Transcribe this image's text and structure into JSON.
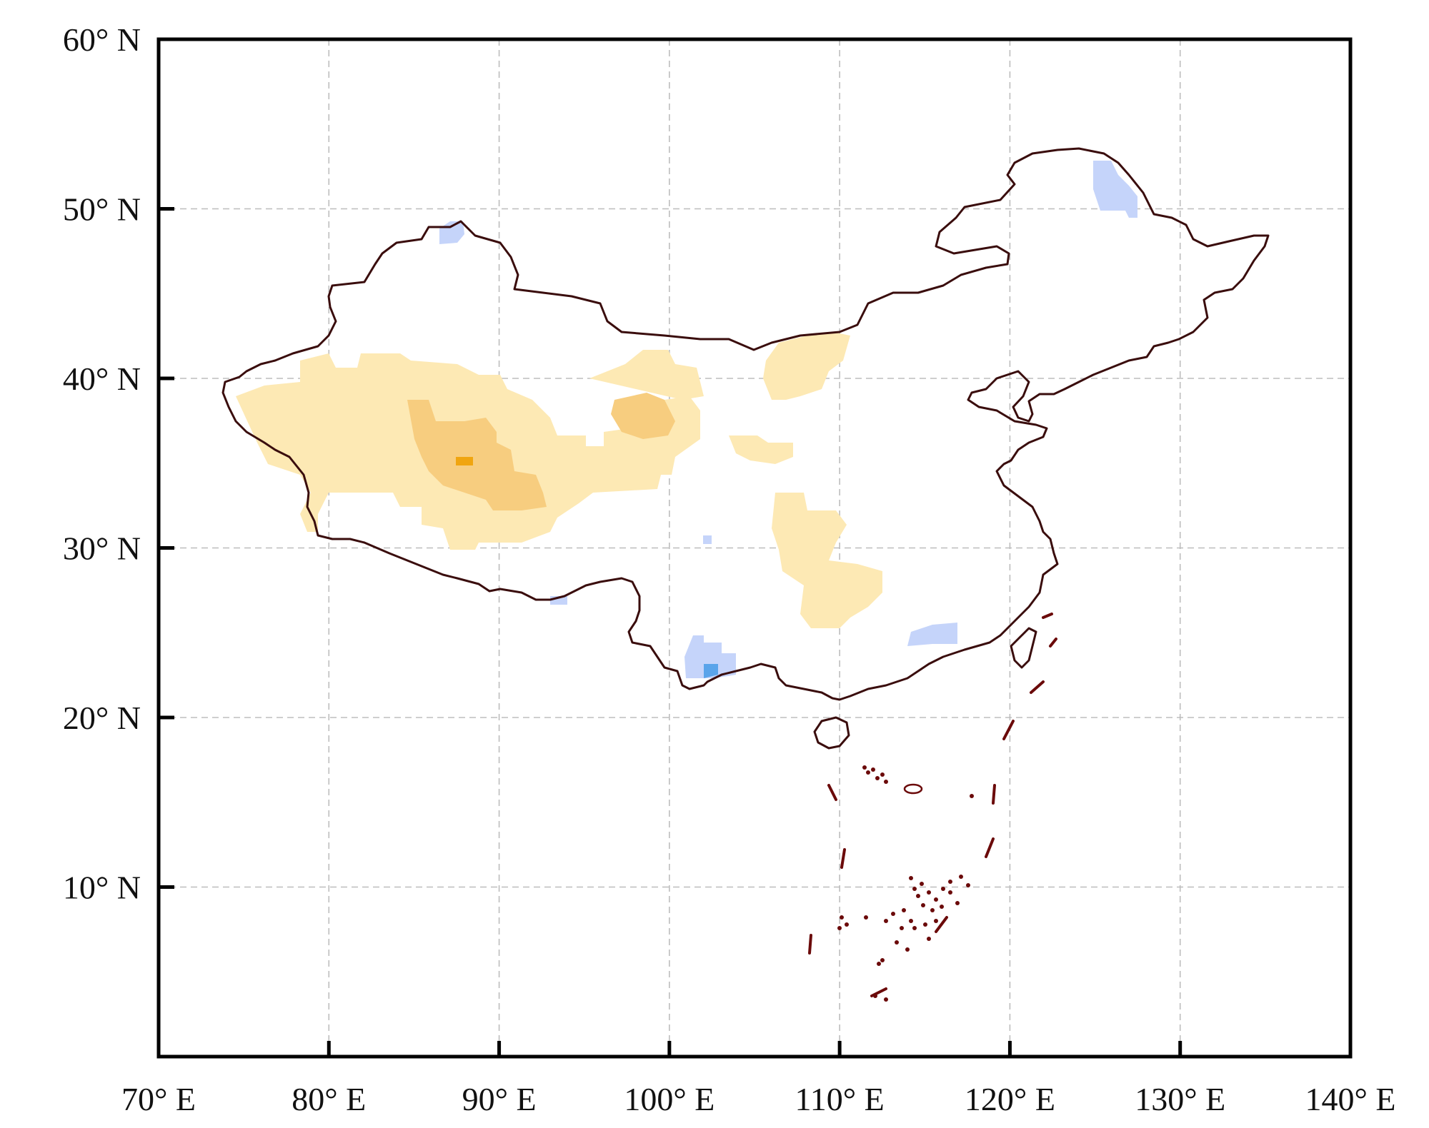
{
  "map": {
    "lon_labels": [
      "70° E",
      "80° E",
      "90° E",
      "100° E",
      "110° E",
      "120° E",
      "130° E",
      "140° E"
    ],
    "lat_labels": [
      "60° N",
      "50° N",
      "40° N",
      "30° N",
      "20° N",
      "10° N"
    ],
    "lon_ticks": [
      70,
      80,
      90,
      100,
      110,
      120,
      130,
      140
    ],
    "lat_ticks": [
      60,
      50,
      40,
      30,
      20,
      10
    ],
    "extent": {
      "lon": [
        70,
        140
      ],
      "lat": [
        0,
        60
      ]
    },
    "gridlines": true,
    "colors": {
      "frame": "#000000",
      "grid": "#bdbdbd",
      "border": "#3a0d0d",
      "islands": "#6b0a0a",
      "positive_light": "#fde9b4",
      "positive_mid": "#f7cd7f",
      "positive_strong": "#f0a510",
      "negative_light": "#c5d4fa",
      "negative_strong": "#5aa4ea"
    },
    "regions": [
      {
        "name": "tarim-tibet-positive",
        "level": "positive_light"
      },
      {
        "name": "qaidam-positive",
        "level": "positive_light"
      },
      {
        "name": "tibet-core-positive",
        "level": "positive_mid"
      },
      {
        "name": "tibet-peak-positive",
        "level": "positive_strong"
      },
      {
        "name": "qinghai-positive",
        "level": "positive_mid"
      },
      {
        "name": "ordos-positive",
        "level": "positive_light"
      },
      {
        "name": "central-positive",
        "level": "positive_light"
      },
      {
        "name": "altai-negative",
        "level": "negative_light"
      },
      {
        "name": "heilongjiang-negative",
        "level": "negative_light"
      },
      {
        "name": "yunnan-negative",
        "level": "negative_light"
      },
      {
        "name": "yunnan-core-negative",
        "level": "negative_strong"
      },
      {
        "name": "guangdong-negative",
        "level": "negative_light"
      }
    ]
  }
}
